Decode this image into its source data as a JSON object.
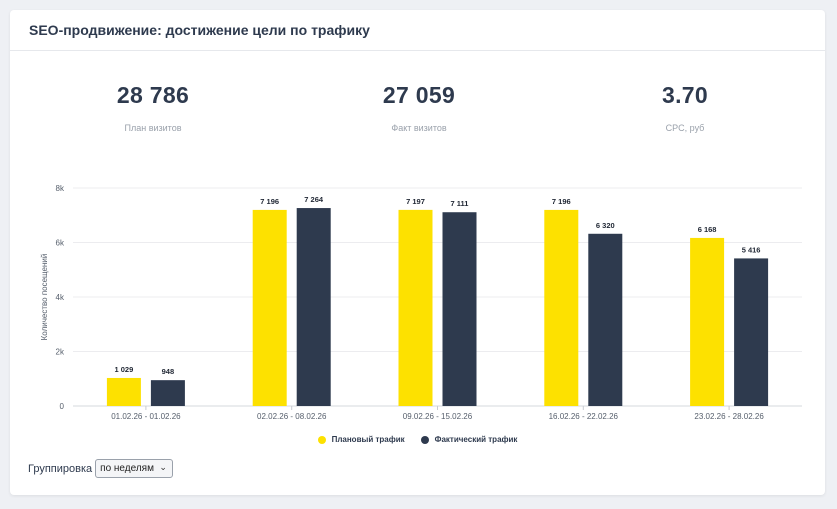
{
  "title": "SEO-продвижение: достижение цели по трафику",
  "kpis": [
    {
      "value": "28 786",
      "label": "План визитов"
    },
    {
      "value": "27 059",
      "label": "Факт визитов"
    },
    {
      "value": "3.70",
      "label": "CPC, руб"
    }
  ],
  "colors": {
    "plan": "#fde100",
    "fact": "#2e3a4e",
    "grid": "#ececef"
  },
  "chart_data": {
    "type": "bar",
    "categories": [
      "01.02.26 - 01.02.26",
      "02.02.26 - 08.02.26",
      "09.02.26 - 15.02.26",
      "16.02.26 - 22.02.26",
      "23.02.26 - 28.02.26"
    ],
    "series": [
      {
        "name": "Плановый трафик",
        "values": [
          1029,
          7196,
          7197,
          7196,
          6168
        ],
        "labels": [
          "1 029",
          "7 196",
          "7 197",
          "7 196",
          "6 168"
        ]
      },
      {
        "name": "Фактический трафик",
        "values": [
          948,
          7264,
          7111,
          6320,
          5416
        ],
        "labels": [
          "948",
          "7 264",
          "7 111",
          "6 320",
          "5 416"
        ]
      }
    ],
    "ylabel": "Количество посещений",
    "ylim": [
      0,
      8000
    ],
    "yticks": [
      0,
      2000,
      4000,
      6000,
      8000
    ],
    "ytick_labels": [
      "0",
      "2k",
      "4k",
      "6k",
      "8k"
    ],
    "grid": true,
    "legend": "bottom"
  },
  "grouping": {
    "label": "Группировка",
    "value": "по неделям"
  }
}
